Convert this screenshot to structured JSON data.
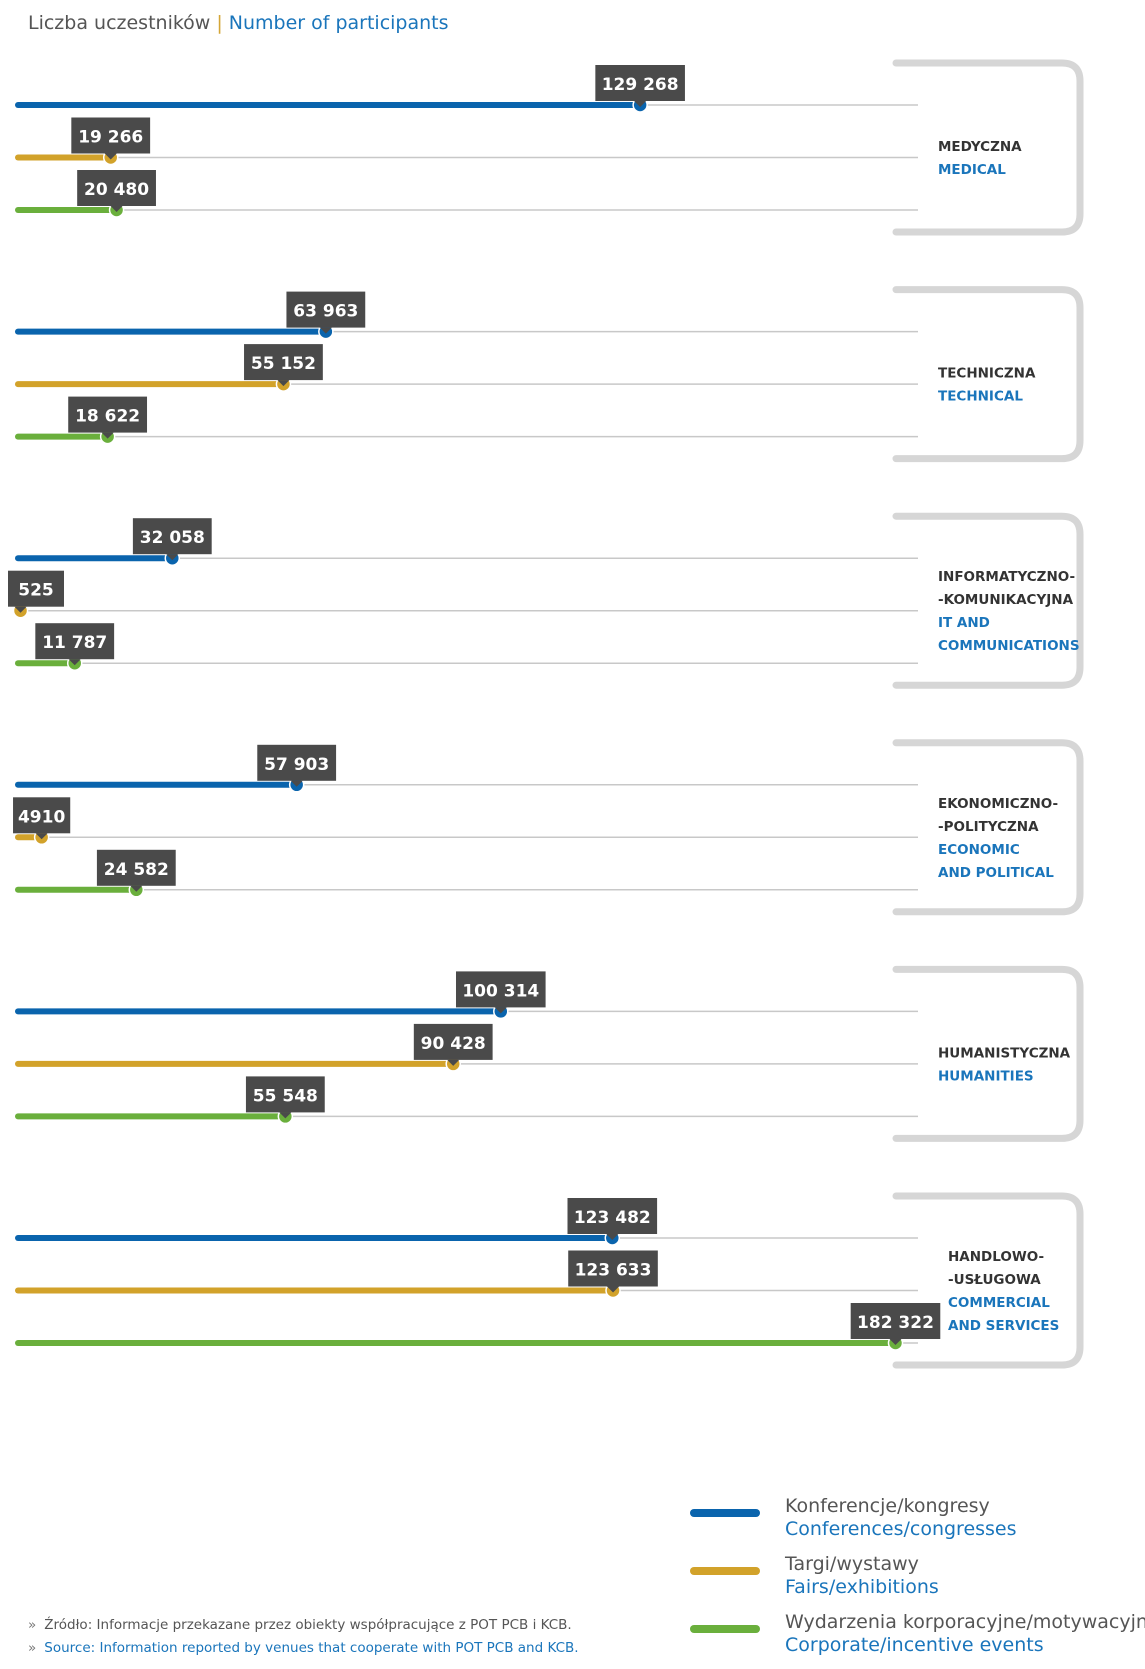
{
  "header": {
    "title_pl": "Liczba uczestników",
    "separator": "|",
    "title_en": "Number of participants"
  },
  "chart_data": {
    "type": "bar",
    "title": "Liczba uczestników | Number of participants",
    "categories": [
      {
        "pl": [
          "MEDYCZNA"
        ],
        "en": [
          "MEDICAL"
        ]
      },
      {
        "pl": [
          "TECHNICZNA"
        ],
        "en": [
          "TECHNICAL"
        ]
      },
      {
        "pl": [
          "INFORMATYCZNO-",
          "-KOMUNIKACYJNA"
        ],
        "en": [
          "IT AND",
          "COMMUNICATIONS"
        ]
      },
      {
        "pl": [
          "EKONOMICZNO-",
          "-POLITYCZNA"
        ],
        "en": [
          "ECONOMIC",
          "AND POLITICAL"
        ]
      },
      {
        "pl": [
          "HUMANISTYCZNA"
        ],
        "en": [
          "HUMANITIES"
        ]
      },
      {
        "pl": [
          "HANDLOWO-",
          "-USŁUGOWA"
        ],
        "en": [
          "COMMERCIAL",
          "AND SERVICES"
        ]
      }
    ],
    "series": [
      {
        "name": "Konferencje/kongresy",
        "name_en": "Conferences/congresses",
        "color": "#0a64ad",
        "values": [
          129268,
          63963,
          32058,
          57903,
          100314,
          123482
        ]
      },
      {
        "name": "Targi/wystawy",
        "name_en": "Fairs/exhibitions",
        "color": "#d2a22a",
        "values": [
          19266,
          55152,
          525,
          4910,
          90428,
          123633
        ]
      },
      {
        "name": "Wydarzenia korporacyjne/motywacyjne",
        "name_en": "Corporate/incentive events",
        "color": "#6aaf3c",
        "values": [
          20480,
          18622,
          11787,
          24582,
          55548,
          182322
        ]
      }
    ],
    "value_labels": [
      [
        "129 268",
        "19 266",
        "20 480"
      ],
      [
        "63 963",
        "55 152",
        "18 622"
      ],
      [
        "32 058",
        "525",
        "11 787"
      ],
      [
        "57 903",
        "4910",
        "24 582"
      ],
      [
        "100 314",
        "90 428",
        "55 548"
      ],
      [
        "123 482",
        "123 633",
        "182 322"
      ]
    ],
    "xlim": [
      0,
      187000
    ],
    "legend_position": "bottom-right",
    "colors": {
      "track": "#c8c8c8",
      "bracket": "#d6d6d6",
      "label_box": "#4a4a4a",
      "label_text": "#ffffff",
      "category_pl": "#333333",
      "category_en": "#1a75bb"
    }
  },
  "source": {
    "marker": "»",
    "pl": "Źródło: Informacje przekazane przez obiekty współpracujące z POT PCB i KCB.",
    "en": "Source: Information reported by venues that cooperate with POT PCB and KCB."
  }
}
